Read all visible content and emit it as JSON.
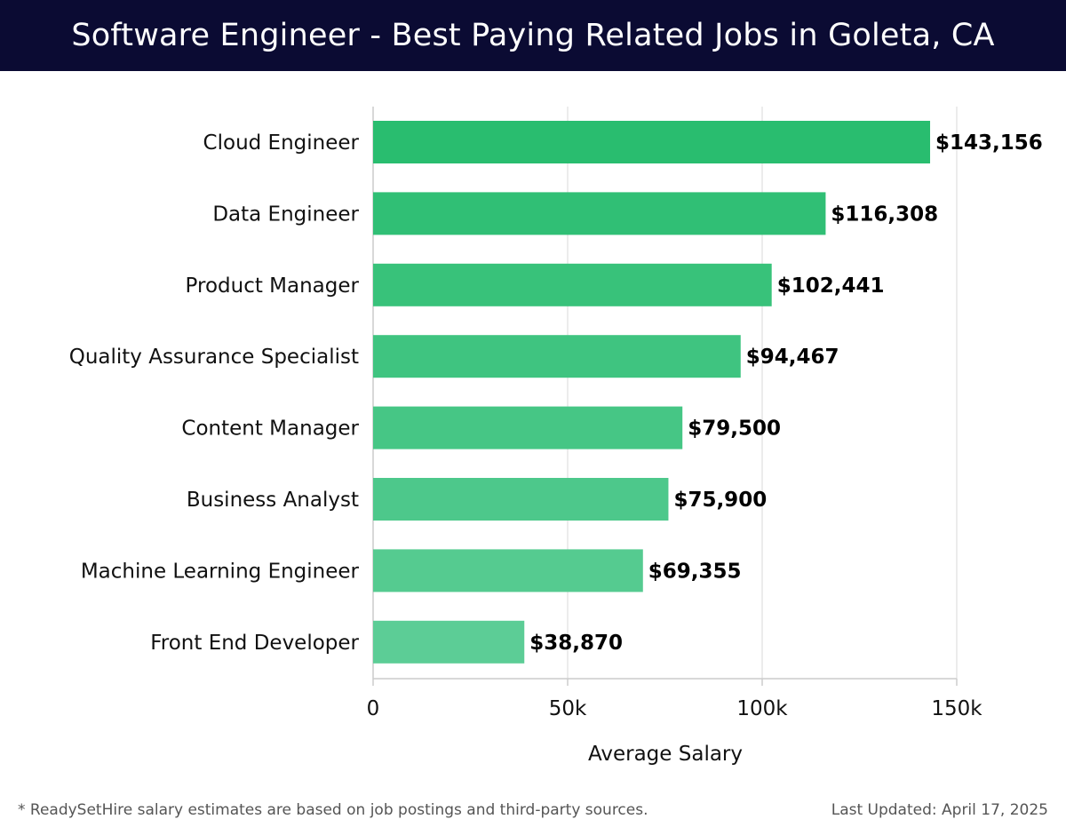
{
  "header": {
    "title": "Software Engineer - Best Paying Related Jobs in Goleta, CA"
  },
  "chart_data": {
    "type": "bar",
    "orientation": "horizontal",
    "categories": [
      "Cloud Engineer",
      "Data Engineer",
      "Product Manager",
      "Quality Assurance Specialist",
      "Content Manager",
      "Business Analyst",
      "Machine Learning Engineer",
      "Front End Developer"
    ],
    "values": [
      143156,
      116308,
      102441,
      94467,
      79500,
      75900,
      69355,
      38870
    ],
    "value_labels": [
      "$143,156",
      "$116,308",
      "$102,441",
      "$94,467",
      "$79,500",
      "$75,900",
      "$69,355",
      "$38,870"
    ],
    "xlabel": "Average Salary",
    "ylabel": "",
    "xlim": [
      0,
      150000
    ],
    "x_ticks": [
      0,
      50000,
      100000,
      150000
    ],
    "x_tick_labels": [
      "0",
      "50k",
      "100k",
      "150k"
    ],
    "grid": "vertical",
    "colors": {
      "bar_dark": "#29bd6f",
      "bar_light": "#5ccd96",
      "grid": "#e6e6e6",
      "axis": "#cccccc",
      "label": "#000000"
    }
  },
  "footer": {
    "note": "* ReadySetHire salary estimates are based on job postings and third-party sources.",
    "last_updated": "Last Updated: April 17, 2025"
  }
}
